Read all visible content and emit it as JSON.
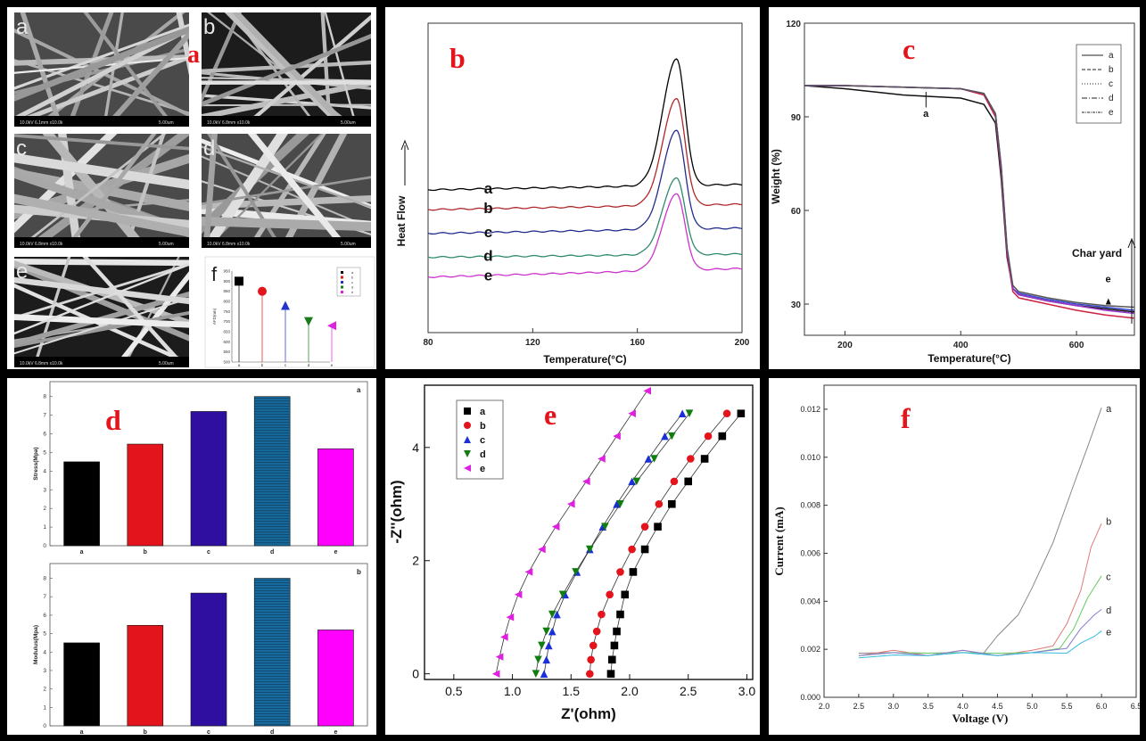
{
  "figure": {
    "panel_a": {
      "big_label": "a",
      "sem_images": [
        {
          "label": "a",
          "scale_text": "10.0kV 6.1mm x10.0k",
          "bar_text": "5.00um"
        },
        {
          "label": "b",
          "scale_text": "10.0kV 6.8mm x10.0k",
          "bar_text": "5.00um"
        },
        {
          "label": "c",
          "scale_text": "10.0kV 6.8mm x10.0k",
          "bar_text": "5.00um"
        },
        {
          "label": "d",
          "scale_text": "10.0kV 6.8mm x10.0k",
          "bar_text": "5.00um"
        },
        {
          "label": "e",
          "scale_text": "10.0kV 6.8mm x10.0k",
          "bar_text": "5.00um"
        }
      ]
    }
  },
  "chart_data": [
    {
      "id": "a-inset-f",
      "type": "scatter",
      "panel_label": "f",
      "ylabel": "AFD(nm)",
      "categories": [
        "a",
        "b",
        "c",
        "d",
        "e"
      ],
      "values": [
        900,
        850,
        780,
        700,
        680
      ],
      "markers": [
        "square",
        "circle",
        "triangle-up",
        "triangle-down",
        "triangle-left"
      ],
      "colors": [
        "#000000",
        "#e3141b",
        "#2233cc",
        "#1b7a1b",
        "#e020e0"
      ],
      "legend": [
        "a",
        "b",
        "c",
        "d",
        "e"
      ],
      "yticks": [
        500,
        550,
        600,
        650,
        700,
        750,
        800,
        850,
        900,
        950
      ],
      "ylim": [
        500,
        950
      ]
    },
    {
      "id": "b",
      "type": "line",
      "panel_label": "b",
      "xlabel": "Temperature(°C)",
      "ylabel": "Heat Flow",
      "xticks": [
        80,
        120,
        160,
        200
      ],
      "xlim": [
        80,
        200
      ],
      "peak_x": 175,
      "series": [
        {
          "name": "a",
          "color": "#000000",
          "baseline": 0.8,
          "rise_end": 0.85,
          "peak": 2.45,
          "end": 0.85
        },
        {
          "name": "b",
          "color": "#b0282c",
          "baseline": 0.55,
          "rise_end": 0.6,
          "peak": 1.95,
          "end": 0.58
        },
        {
          "name": "c",
          "color": "#232c8c",
          "baseline": 0.25,
          "rise_end": 0.3,
          "peak": 1.55,
          "end": 0.27
        },
        {
          "name": "d",
          "color": "#2f8a6e",
          "baseline": -0.05,
          "rise_end": -0.02,
          "peak": 0.95,
          "end": -0.05
        },
        {
          "name": "e",
          "color": "#cc33cc",
          "baseline": -0.3,
          "rise_end": -0.22,
          "peak": 0.75,
          "end": -0.3
        }
      ],
      "ylim": [
        -1.0,
        2.9
      ]
    },
    {
      "id": "c",
      "type": "line",
      "panel_label": "c",
      "xlabel": "Temperature(°C)",
      "ylabel": "Weight (%)",
      "xticks": [
        200,
        400,
        600
      ],
      "yticks": [
        30,
        60,
        90,
        120
      ],
      "xlim": [
        130,
        700
      ],
      "ylim": [
        20,
        120
      ],
      "annotations": {
        "a_label": "a",
        "e_label": "e",
        "char": "Char yard"
      },
      "legend": [
        "a",
        "b",
        "c",
        "d",
        "e"
      ],
      "series": [
        {
          "name": "a",
          "color": "#111111",
          "x": [
            130,
            200,
            300,
            400,
            440,
            460,
            470,
            480,
            490,
            500,
            550,
            600,
            650,
            700
          ],
          "y": [
            100,
            99,
            97,
            96,
            94,
            88,
            70,
            45,
            35,
            33,
            31,
            29.5,
            28.5,
            27.5
          ]
        },
        {
          "name": "b",
          "color": "#cc2244",
          "x": [
            130,
            200,
            300,
            400,
            440,
            460,
            470,
            480,
            490,
            500,
            550,
            600,
            650,
            700
          ],
          "y": [
            100,
            100,
            99.5,
            99,
            97,
            90,
            72,
            46,
            34,
            32,
            30,
            28,
            26.5,
            25.5
          ]
        },
        {
          "name": "c",
          "color": "#3344cc",
          "x": [
            130,
            200,
            300,
            400,
            440,
            460,
            470,
            480,
            490,
            500,
            550,
            600,
            650,
            700
          ],
          "y": [
            100,
            100,
            99.5,
            99,
            97.5,
            91,
            74,
            48,
            35,
            33.5,
            31.5,
            30,
            29,
            28
          ]
        },
        {
          "name": "d",
          "color": "#9933cc",
          "x": [
            130,
            200,
            300,
            400,
            440,
            460,
            470,
            480,
            490,
            500,
            550,
            600,
            650,
            700
          ],
          "y": [
            100,
            100,
            99.5,
            99,
            97.5,
            91,
            73,
            47,
            35,
            33,
            31,
            29.5,
            28,
            27
          ]
        },
        {
          "name": "e",
          "color": "#555555",
          "x": [
            130,
            200,
            300,
            400,
            440,
            460,
            470,
            480,
            490,
            500,
            550,
            600,
            650,
            700
          ],
          "y": [
            100,
            100,
            99.5,
            99,
            97.5,
            91,
            74,
            48,
            36,
            34,
            32,
            30.5,
            29.5,
            29
          ]
        }
      ]
    },
    {
      "id": "d-top",
      "type": "bar",
      "panel_label": "d",
      "sub_label": "a",
      "ylabel": "Stress(Mpa)",
      "categories": [
        "a",
        "b",
        "c",
        "d",
        "e"
      ],
      "values": [
        4.5,
        5.45,
        7.2,
        8.0,
        5.2
      ],
      "colors": [
        "#000000",
        "#e3141b",
        "#2f0fa0",
        "#186a9c",
        "#ff00ff"
      ],
      "yticks": [
        0,
        1,
        2,
        3,
        4,
        5,
        6,
        7,
        8
      ],
      "ylim": [
        0,
        8.8
      ]
    },
    {
      "id": "d-bottom",
      "type": "bar",
      "sub_label": "b",
      "ylabel": "Modulus(Mpa)",
      "categories": [
        "a",
        "b",
        "c",
        "d",
        "e"
      ],
      "values": [
        4.5,
        5.45,
        7.2,
        8.0,
        5.2
      ],
      "colors": [
        "#000000",
        "#e3141b",
        "#2f0fa0",
        "#186a9c",
        "#ff00ff"
      ],
      "yticks": [
        0,
        1,
        2,
        3,
        4,
        5,
        6,
        7,
        8
      ],
      "ylim": [
        0,
        8.8
      ]
    },
    {
      "id": "e",
      "type": "scatter",
      "panel_label": "e",
      "xlabel": "Z'(ohm)",
      "ylabel": "-Z''(ohm)",
      "xticks": [
        "0.5",
        "1.0",
        "1.5",
        "2.0",
        "2.5",
        "3.0"
      ],
      "yticks": [
        "0",
        "2",
        "4"
      ],
      "xlim": [
        0.5,
        3.0
      ],
      "ylim": [
        -0.1,
        5.1
      ],
      "legend": [
        "a",
        "b",
        "c",
        "d",
        "e"
      ],
      "series": [
        {
          "name": "a",
          "color": "#000000",
          "marker": "square",
          "x": [
            1.84,
            1.85,
            1.87,
            1.89,
            1.92,
            1.96,
            2.03,
            2.13,
            2.24,
            2.36,
            2.5,
            2.64,
            2.79,
            2.95
          ],
          "y": [
            0.0,
            0.25,
            0.5,
            0.75,
            1.05,
            1.4,
            1.8,
            2.2,
            2.6,
            3.0,
            3.4,
            3.8,
            4.2,
            4.6
          ]
        },
        {
          "name": "b",
          "color": "#e3141b",
          "marker": "circle",
          "x": [
            1.66,
            1.67,
            1.69,
            1.72,
            1.76,
            1.83,
            1.92,
            2.02,
            2.13,
            2.25,
            2.38,
            2.52,
            2.67,
            2.83
          ],
          "y": [
            0.0,
            0.25,
            0.5,
            0.75,
            1.05,
            1.4,
            1.8,
            2.2,
            2.6,
            3.0,
            3.4,
            3.8,
            4.2,
            4.6
          ]
        },
        {
          "name": "c",
          "color": "#1a2fd6",
          "marker": "triangle-up",
          "x": [
            1.27,
            1.29,
            1.31,
            1.34,
            1.38,
            1.45,
            1.55,
            1.66,
            1.77,
            1.89,
            2.02,
            2.16,
            2.3,
            2.45
          ],
          "y": [
            0.0,
            0.25,
            0.5,
            0.75,
            1.05,
            1.4,
            1.8,
            2.2,
            2.6,
            3.0,
            3.4,
            3.8,
            4.2,
            4.6
          ]
        },
        {
          "name": "d",
          "color": "#117d11",
          "marker": "triangle-down",
          "x": [
            1.2,
            1.22,
            1.25,
            1.29,
            1.34,
            1.43,
            1.54,
            1.66,
            1.79,
            1.92,
            2.06,
            2.21,
            2.36,
            2.51
          ],
          "y": [
            0.0,
            0.25,
            0.5,
            0.75,
            1.05,
            1.4,
            1.8,
            2.2,
            2.6,
            3.0,
            3.4,
            3.8,
            4.2,
            4.6
          ]
        },
        {
          "name": "e",
          "color": "#e020e0",
          "marker": "triangle-left",
          "x": [
            0.86,
            0.89,
            0.93,
            0.98,
            1.05,
            1.14,
            1.25,
            1.37,
            1.5,
            1.63,
            1.76,
            1.89,
            2.02,
            2.15
          ],
          "y": [
            0.0,
            0.3,
            0.65,
            1.0,
            1.4,
            1.8,
            2.2,
            2.6,
            3.0,
            3.4,
            3.8,
            4.2,
            4.6,
            5.0
          ]
        }
      ]
    },
    {
      "id": "f",
      "type": "line",
      "panel_label": "f",
      "xlabel": "Voltage (V)",
      "ylabel": "Current (mA)",
      "xticks": [
        "2.0",
        "2.5",
        "3.0",
        "3.5",
        "4.0",
        "4.5",
        "5.0",
        "5.5",
        "6.0",
        "6.5"
      ],
      "yticks": [
        "0.000",
        "0.002",
        "0.004",
        "0.006",
        "0.008",
        "0.010",
        "0.012"
      ],
      "xlim": [
        2.0,
        6.5
      ],
      "ylim": [
        0.0,
        0.013
      ],
      "series": [
        {
          "name": "a",
          "color": "#888888",
          "x": [
            2.5,
            3.0,
            3.5,
            4.0,
            4.3,
            4.5,
            4.8,
            5.0,
            5.3,
            5.6,
            5.8,
            6.0
          ],
          "y": [
            0.0019,
            0.0018,
            0.0019,
            0.0018,
            0.0019,
            0.0025,
            0.0035,
            0.0045,
            0.0065,
            0.0088,
            0.0105,
            0.012
          ]
        },
        {
          "name": "b",
          "color": "#e07a7a",
          "x": [
            2.5,
            3.0,
            3.5,
            4.0,
            4.5,
            5.0,
            5.3,
            5.5,
            5.7,
            5.85,
            6.0
          ],
          "y": [
            0.0018,
            0.0019,
            0.0018,
            0.0019,
            0.0018,
            0.0019,
            0.0022,
            0.003,
            0.0045,
            0.0062,
            0.0073
          ]
        },
        {
          "name": "c",
          "color": "#66cc66",
          "x": [
            2.5,
            3.0,
            3.5,
            4.0,
            4.5,
            5.0,
            5.4,
            5.6,
            5.8,
            6.0
          ],
          "y": [
            0.0018,
            0.0018,
            0.0019,
            0.0018,
            0.0019,
            0.0018,
            0.0021,
            0.0028,
            0.0042,
            0.005
          ]
        },
        {
          "name": "d",
          "color": "#8a7ad0",
          "x": [
            2.5,
            3.0,
            3.5,
            4.0,
            4.5,
            5.0,
            5.5,
            5.7,
            5.9,
            6.0
          ],
          "y": [
            0.0018,
            0.0018,
            0.0018,
            0.0019,
            0.0018,
            0.0018,
            0.0021,
            0.0028,
            0.0035,
            0.0036
          ]
        },
        {
          "name": "e",
          "color": "#33bbdd",
          "x": [
            2.5,
            3.0,
            3.5,
            4.0,
            4.5,
            5.0,
            5.5,
            5.7,
            5.9,
            6.0
          ],
          "y": [
            0.0017,
            0.0017,
            0.0018,
            0.0018,
            0.0018,
            0.0018,
            0.0019,
            0.0022,
            0.0026,
            0.0027
          ]
        }
      ]
    }
  ]
}
